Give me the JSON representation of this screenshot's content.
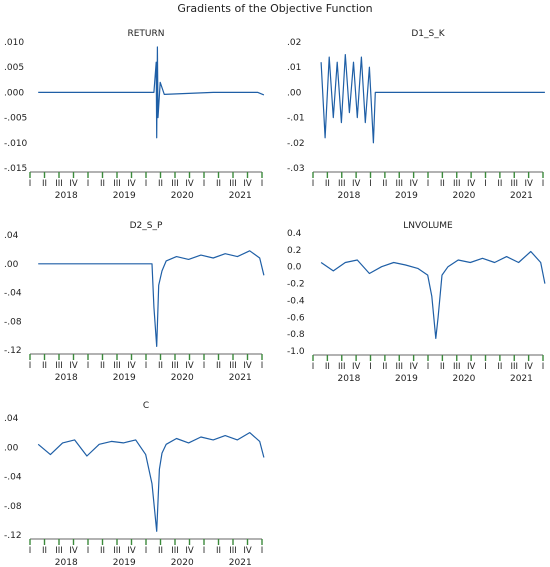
{
  "figure_title": "Gradients of the Objective Function",
  "colors": {
    "series": "#1f5fa6",
    "axis": "#333333",
    "quarter_tick": "#3b8a3b",
    "text": "#222222"
  },
  "chart_data": [
    {
      "type": "line",
      "title": "RETURN",
      "xlim": [
        "2017-Q2",
        "2022-Q1"
      ],
      "ylim": [
        -0.015,
        0.01
      ],
      "yticks": [
        ".010",
        ".005",
        ".000",
        "-.005",
        "-.010",
        "-.015"
      ],
      "quarter_labels": [
        "I",
        "II",
        "III",
        "IV",
        "I",
        "II",
        "III",
        "IV",
        "I",
        "II",
        "III",
        "IV",
        "I",
        "II",
        "III",
        "IV",
        "I"
      ],
      "year_labels": [
        "2018",
        "2019",
        "2020",
        "2021"
      ],
      "series": [
        {
          "values": [
            [
              "2017-06-01",
              0.0
            ],
            [
              "2018-01-01",
              0.0
            ],
            [
              "2019-01-01",
              0.0
            ],
            [
              "2019-10-15",
              0.0
            ],
            [
              "2019-11-01",
              0.006
            ],
            [
              "2019-11-05",
              -0.009
            ],
            [
              "2019-11-10",
              0.009
            ],
            [
              "2019-11-15",
              -0.005
            ],
            [
              "2019-12-01",
              0.002
            ],
            [
              "2020-01-01",
              -0.0004
            ],
            [
              "2021-01-01",
              0.0
            ],
            [
              "2021-12-01",
              0.0
            ],
            [
              "2022-01-15",
              -0.0005
            ]
          ]
        }
      ]
    },
    {
      "type": "line",
      "title": "D1_S_K",
      "xlim": [
        "2017-Q2",
        "2022-Q1"
      ],
      "ylim": [
        -0.03,
        0.02
      ],
      "yticks": [
        ".02",
        ".01",
        ".00",
        "-.01",
        "-.02",
        "-.03"
      ],
      "quarter_labels": [
        "I",
        "II",
        "III",
        "IV",
        "I",
        "II",
        "III",
        "IV",
        "I",
        "II",
        "III",
        "IV",
        "I",
        "II",
        "III",
        "IV",
        "I"
      ],
      "year_labels": [
        "2018",
        "2019",
        "2020",
        "2021"
      ],
      "series": [
        {
          "values": [
            [
              "2017-06-01",
              0.012
            ],
            [
              "2017-07-01",
              -0.018
            ],
            [
              "2017-08-01",
              0.014
            ],
            [
              "2017-09-01",
              -0.01
            ],
            [
              "2017-10-01",
              0.012
            ],
            [
              "2017-11-01",
              -0.012
            ],
            [
              "2017-12-01",
              0.015
            ],
            [
              "2018-01-01",
              -0.008
            ],
            [
              "2018-02-01",
              0.012
            ],
            [
              "2018-03-01",
              -0.01
            ],
            [
              "2018-04-01",
              0.014
            ],
            [
              "2018-05-01",
              -0.012
            ],
            [
              "2018-06-01",
              0.01
            ],
            [
              "2018-07-01",
              -0.02
            ],
            [
              "2018-07-15",
              0.0
            ],
            [
              "2019-01-01",
              0.0
            ],
            [
              "2021-12-01",
              0.0
            ],
            [
              "2022-01-15",
              0.0
            ]
          ]
        }
      ]
    },
    {
      "type": "line",
      "title": "D2_S_P",
      "xlim": [
        "2017-Q2",
        "2022-Q1"
      ],
      "ylim": [
        -0.12,
        0.04
      ],
      "yticks": [
        ".04",
        ".00",
        "-.04",
        "-.08",
        "-.12"
      ],
      "quarter_labels": [
        "I",
        "II",
        "III",
        "IV",
        "I",
        "II",
        "III",
        "IV",
        "I",
        "II",
        "III",
        "IV",
        "I",
        "II",
        "III",
        "IV",
        "I"
      ],
      "year_labels": [
        "2018",
        "2019",
        "2020",
        "2021"
      ],
      "series": [
        {
          "values": [
            [
              "2017-06-01",
              0.0
            ],
            [
              "2018-01-01",
              0.0
            ],
            [
              "2019-01-01",
              0.0
            ],
            [
              "2019-10-01",
              0.0
            ],
            [
              "2019-10-15",
              -0.06
            ],
            [
              "2019-11-05",
              -0.115
            ],
            [
              "2019-11-20",
              -0.03
            ],
            [
              "2019-12-15",
              -0.01
            ],
            [
              "2020-01-15",
              0.004
            ],
            [
              "2020-04-01",
              0.01
            ],
            [
              "2020-07-01",
              0.006
            ],
            [
              "2020-10-01",
              0.012
            ],
            [
              "2021-01-01",
              0.008
            ],
            [
              "2021-04-01",
              0.014
            ],
            [
              "2021-07-01",
              0.01
            ],
            [
              "2021-10-01",
              0.018
            ],
            [
              "2021-12-15",
              0.008
            ],
            [
              "2022-01-15",
              -0.016
            ]
          ]
        }
      ]
    },
    {
      "type": "line",
      "title": "LNVOLUME",
      "xlim": [
        "2017-Q2",
        "2022-Q1"
      ],
      "ylim": [
        -1.0,
        0.4
      ],
      "yticks": [
        "0.4",
        "0.2",
        "0.0",
        "-0.2",
        "-0.4",
        "-0.6",
        "-0.8",
        "-1.0"
      ],
      "quarter_labels": [
        "I",
        "II",
        "III",
        "IV",
        "I",
        "II",
        "III",
        "IV",
        "I",
        "II",
        "III",
        "IV",
        "I",
        "II",
        "III",
        "IV",
        "I"
      ],
      "year_labels": [
        "2018",
        "2019",
        "2020",
        "2021"
      ],
      "series": [
        {
          "values": [
            [
              "2017-06-01",
              0.05
            ],
            [
              "2017-09-01",
              -0.05
            ],
            [
              "2017-12-01",
              0.05
            ],
            [
              "2018-03-01",
              0.08
            ],
            [
              "2018-06-01",
              -0.08
            ],
            [
              "2018-09-01",
              0.0
            ],
            [
              "2018-12-01",
              0.05
            ],
            [
              "2019-03-01",
              0.02
            ],
            [
              "2019-06-01",
              -0.02
            ],
            [
              "2019-08-15",
              -0.1
            ],
            [
              "2019-09-15",
              -0.35
            ],
            [
              "2019-10-15",
              -0.85
            ],
            [
              "2019-11-01",
              -0.6
            ],
            [
              "2019-12-01",
              -0.1
            ],
            [
              "2020-01-15",
              0.0
            ],
            [
              "2020-04-01",
              0.08
            ],
            [
              "2020-07-01",
              0.05
            ],
            [
              "2020-10-01",
              0.1
            ],
            [
              "2021-01-01",
              0.05
            ],
            [
              "2021-04-01",
              0.12
            ],
            [
              "2021-07-01",
              0.05
            ],
            [
              "2021-10-01",
              0.18
            ],
            [
              "2021-12-15",
              0.05
            ],
            [
              "2022-01-15",
              -0.2
            ]
          ]
        }
      ]
    },
    {
      "type": "line",
      "title": "C",
      "xlim": [
        "2017-Q2",
        "2022-Q1"
      ],
      "ylim": [
        -0.12,
        0.04
      ],
      "yticks": [
        ".04",
        ".00",
        "-.04",
        "-.08",
        "-.12"
      ],
      "quarter_labels": [
        "I",
        "II",
        "III",
        "IV",
        "I",
        "II",
        "III",
        "IV",
        "I",
        "II",
        "III",
        "IV",
        "I",
        "II",
        "III",
        "IV",
        "I"
      ],
      "year_labels": [
        "2018",
        "2019",
        "2020",
        "2021"
      ],
      "series": [
        {
          "values": [
            [
              "2017-06-01",
              0.004
            ],
            [
              "2017-09-01",
              -0.01
            ],
            [
              "2017-12-01",
              0.006
            ],
            [
              "2018-03-01",
              0.01
            ],
            [
              "2018-06-01",
              -0.012
            ],
            [
              "2018-09-01",
              0.004
            ],
            [
              "2018-12-01",
              0.008
            ],
            [
              "2019-03-01",
              0.006
            ],
            [
              "2019-06-01",
              0.01
            ],
            [
              "2019-08-15",
              -0.01
            ],
            [
              "2019-10-01",
              -0.05
            ],
            [
              "2019-11-05",
              -0.115
            ],
            [
              "2019-11-25",
              -0.03
            ],
            [
              "2019-12-15",
              -0.008
            ],
            [
              "2020-01-15",
              0.004
            ],
            [
              "2020-04-01",
              0.012
            ],
            [
              "2020-07-01",
              0.006
            ],
            [
              "2020-10-01",
              0.014
            ],
            [
              "2021-01-01",
              0.01
            ],
            [
              "2021-04-01",
              0.016
            ],
            [
              "2021-07-01",
              0.01
            ],
            [
              "2021-10-01",
              0.02
            ],
            [
              "2021-12-15",
              0.008
            ],
            [
              "2022-01-15",
              -0.014
            ]
          ]
        }
      ]
    }
  ]
}
